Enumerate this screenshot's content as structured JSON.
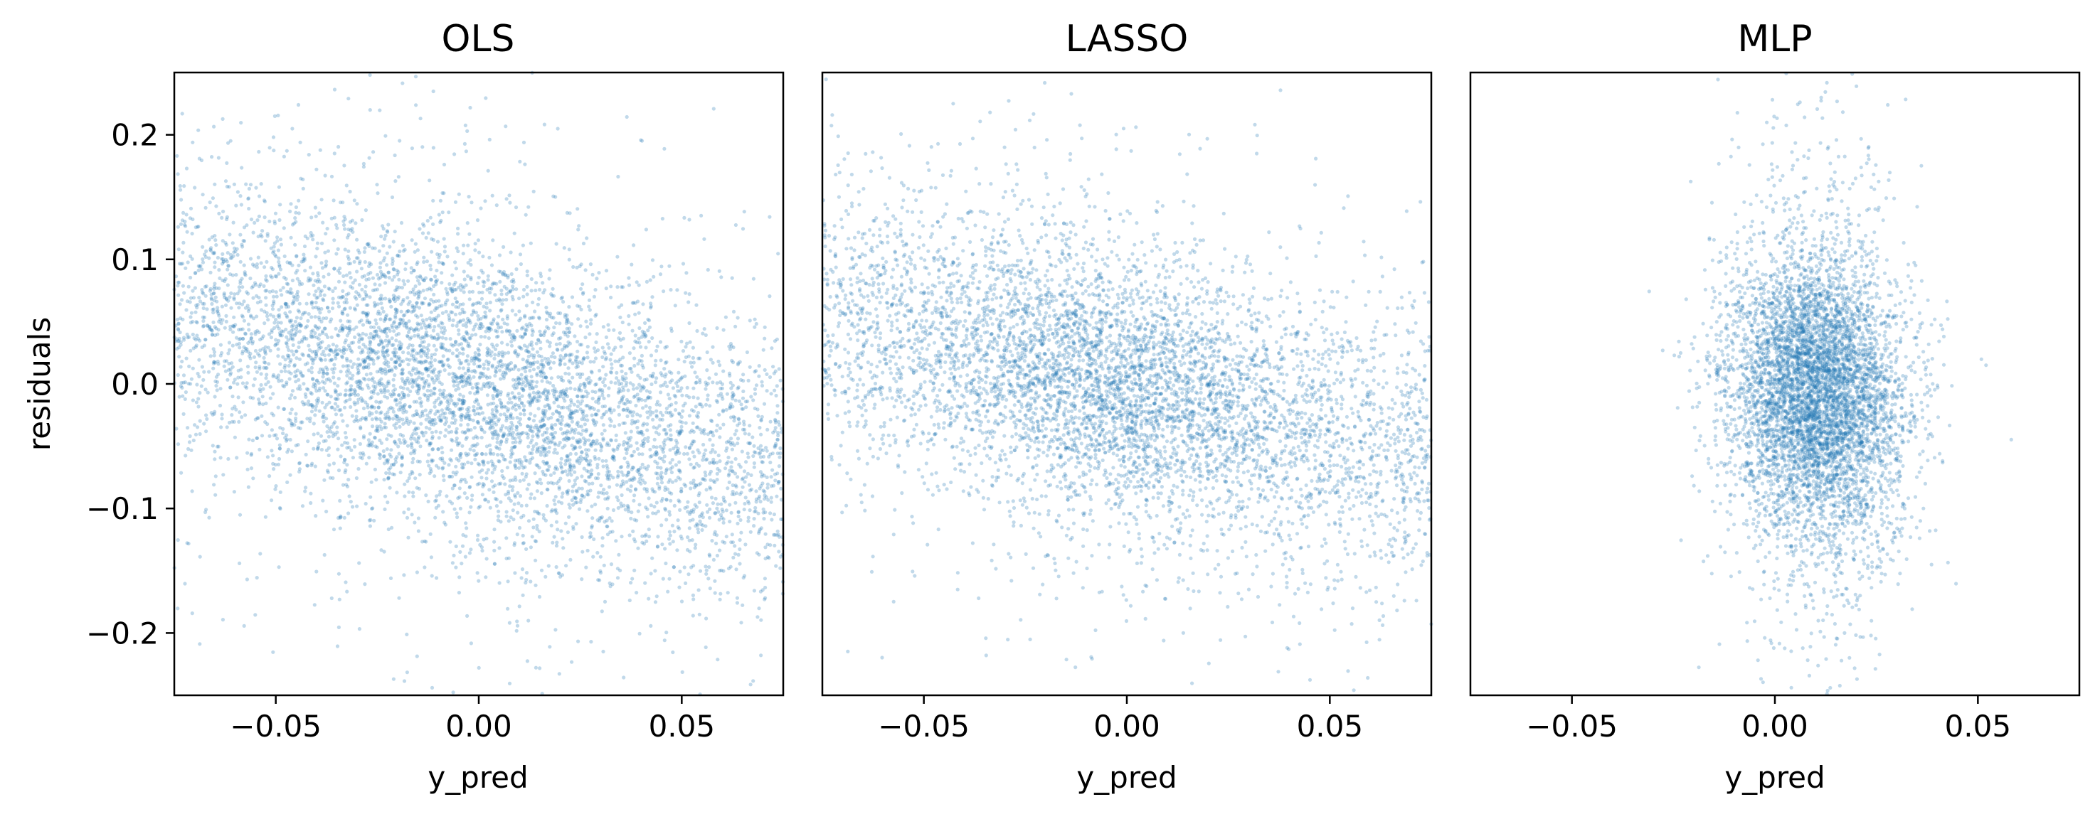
{
  "chart_data": [
    {
      "type": "scatter",
      "title": "OLS",
      "xlabel": "y_pred",
      "ylabel": "residuals",
      "xlim": [
        -0.075,
        0.075
      ],
      "ylim": [
        -0.25,
        0.25
      ],
      "xticks": [
        "−0.05",
        "0.00",
        "0.05"
      ],
      "yticks": [
        "−0.2",
        "−0.1",
        "0.0",
        "0.1",
        "0.2"
      ],
      "grid": false,
      "color": "#1f77b4",
      "point_count": 6000,
      "trend": {
        "x_range": [
          -0.075,
          0.075
        ],
        "residual_at_xmin": 0.06,
        "residual_at_xmax": -0.07
      },
      "spread": {
        "x_sd": 0.035,
        "residual_sd": 0.075
      }
    },
    {
      "type": "scatter",
      "title": "LASSO",
      "xlabel": "y_pred",
      "ylabel": "",
      "xlim": [
        -0.075,
        0.075
      ],
      "ylim": [
        -0.25,
        0.25
      ],
      "xticks": [
        "−0.05",
        "0.00",
        "0.05"
      ],
      "yticks": [],
      "grid": false,
      "color": "#1f77b4",
      "point_count": 6000,
      "trend": {
        "x_range": [
          -0.075,
          0.075
        ],
        "residual_at_xmin": 0.055,
        "residual_at_xmax": -0.06
      },
      "spread": {
        "x_sd": 0.028,
        "residual_sd": 0.07
      }
    },
    {
      "type": "scatter",
      "title": "MLP",
      "xlabel": "y_pred",
      "ylabel": "",
      "xlim": [
        -0.075,
        0.075
      ],
      "ylim": [
        -0.25,
        0.25
      ],
      "xticks": [
        "−0.05",
        "0.00",
        "0.05"
      ],
      "yticks": [],
      "grid": false,
      "color": "#1f77b4",
      "point_count": 6000,
      "trend": {
        "x_range": [
          -0.005,
          0.03
        ],
        "residual_at_xmin": 0.0,
        "residual_at_xmax": -0.02
      },
      "spread": {
        "x_center": 0.01,
        "x_sd": 0.011,
        "residual_sd": 0.075
      }
    }
  ]
}
